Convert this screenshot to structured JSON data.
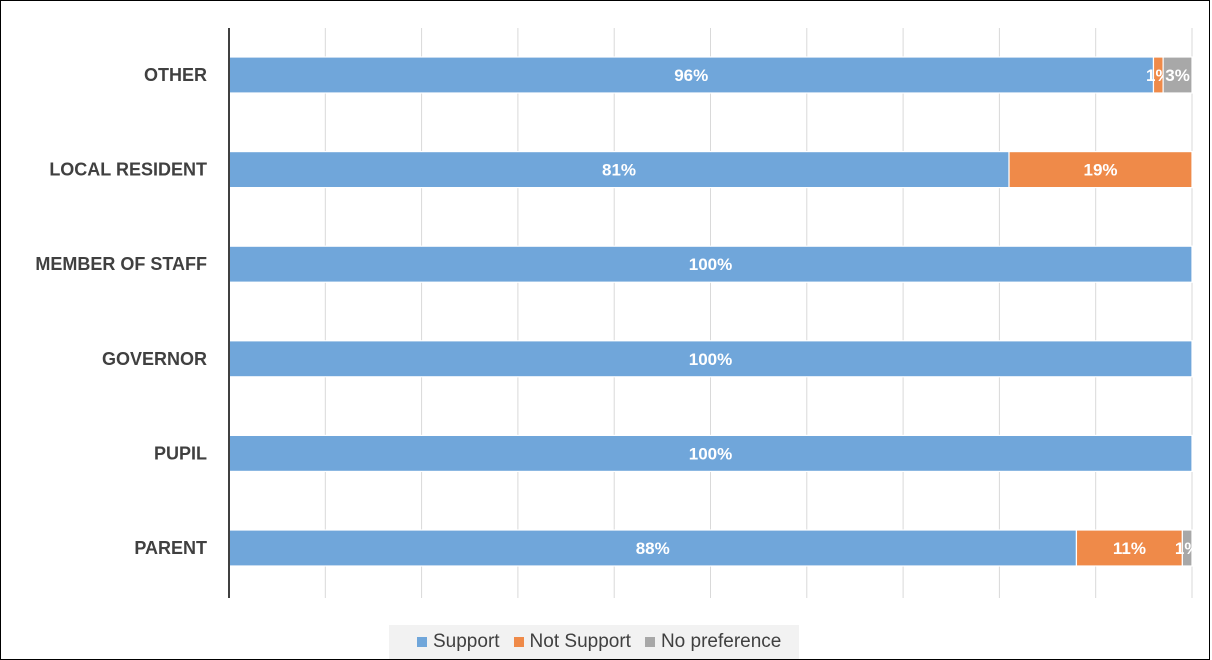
{
  "chart_data": {
    "type": "bar",
    "orientation": "horizontal",
    "stacked": "100%",
    "categories": [
      "OTHER",
      "LOCAL RESIDENT",
      "MEMBER OF STAFF",
      "GOVERNOR",
      "PUPIL",
      "PARENT"
    ],
    "series": [
      {
        "name": "Support",
        "color": "#70a6da",
        "values": [
          96,
          81,
          100,
          100,
          100,
          88
        ],
        "labels": [
          "96%",
          "81%",
          "100%",
          "100%",
          "100%",
          "88%"
        ]
      },
      {
        "name": "Not Support",
        "color": "#ef8a49",
        "values": [
          1,
          19,
          0,
          0,
          0,
          11
        ],
        "labels": [
          "1%",
          "19%",
          "",
          "",
          "",
          "11%"
        ]
      },
      {
        "name": "No preference",
        "color": "#a8a8a8",
        "values": [
          3,
          0,
          0,
          0,
          0,
          1
        ],
        "labels": [
          "3%",
          "",
          "",
          "",
          "",
          "1%"
        ]
      }
    ],
    "xlim": [
      0,
      100
    ],
    "grid": true,
    "legend_position": "bottom"
  }
}
